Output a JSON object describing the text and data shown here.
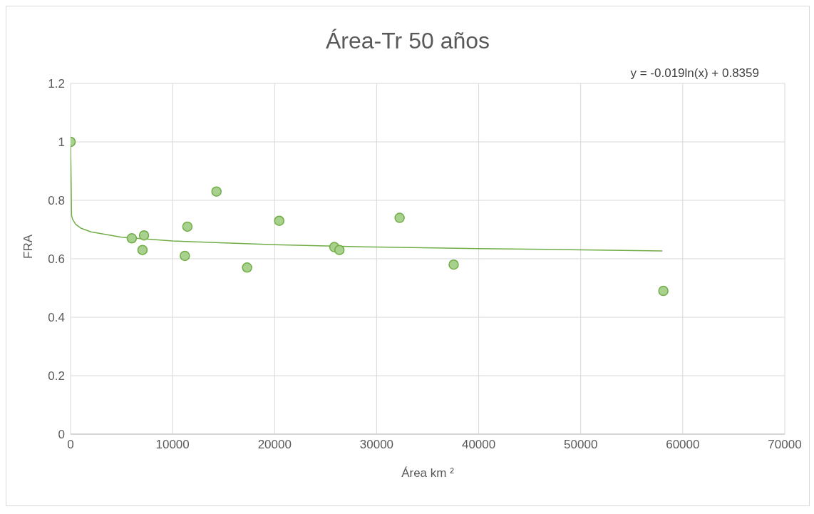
{
  "chart_data": {
    "type": "scatter",
    "title": "Área-Tr 50 años",
    "xlabel": "Área km ²",
    "ylabel": "FRA",
    "annotations": [
      "y = -0.019ln(x) + 0.8359"
    ],
    "xlim": [
      0,
      70000
    ],
    "xticks": [
      0,
      10000,
      20000,
      30000,
      40000,
      50000,
      60000,
      70000
    ],
    "ylim": [
      0,
      1.2
    ],
    "yticks": [
      0,
      0.2,
      0.4,
      0.6,
      0.8,
      1,
      1.2
    ],
    "grid": true,
    "marker": "circle",
    "series": [
      {
        "color": "#70ad47",
        "x": [
          0,
          6000,
          7050,
          7200,
          11200,
          11450,
          14300,
          17300,
          20450,
          25850,
          26350,
          32250,
          37550,
          58100
        ],
        "values": [
          1.0,
          0.67,
          0.63,
          0.68,
          0.61,
          0.71,
          0.83,
          0.57,
          0.73,
          0.64,
          0.63,
          0.74,
          0.58,
          0.49
        ]
      },
      {
        "type": "line",
        "color": "#70ad47",
        "line_style": "solid",
        "marker": "none",
        "x": [
          0.0002,
          100,
          200,
          500,
          1000,
          2000,
          5000,
          10000,
          20000,
          30000,
          40000,
          58000
        ],
        "values": [
          1.0,
          0.748,
          0.735,
          0.718,
          0.705,
          0.692,
          0.674,
          0.661,
          0.648,
          0.64,
          0.635,
          0.627
        ]
      }
    ]
  }
}
